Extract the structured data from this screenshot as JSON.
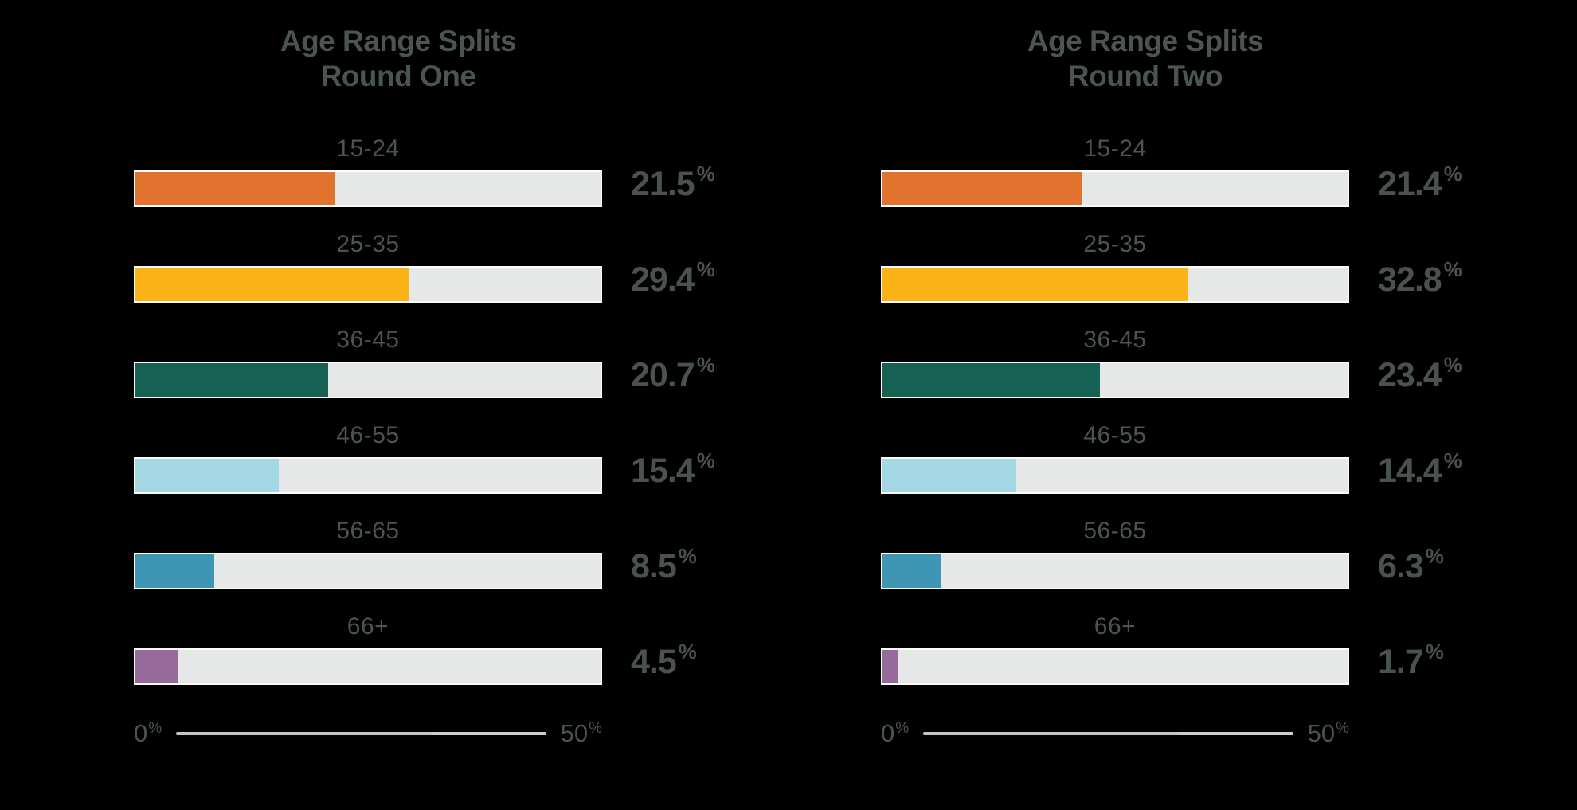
{
  "page": {
    "background": "#000000",
    "text_color": "#4A5351"
  },
  "chart_data": [
    {
      "type": "bar",
      "orientation": "horizontal",
      "title_lines": [
        "Age Range Splits",
        "Round One"
      ],
      "categories": [
        "15-24",
        "25-35",
        "36-45",
        "46-55",
        "56-65",
        "66+"
      ],
      "values": [
        21.5,
        29.4,
        20.7,
        15.4,
        8.5,
        4.5
      ],
      "value_labels": [
        "21.5",
        "29.4",
        "20.7",
        "15.4",
        "8.5",
        "4.5"
      ],
      "value_suffix": "%",
      "xlim": [
        0,
        50
      ],
      "axis_ticks": [
        "0",
        "50"
      ],
      "axis_tick_suffix": "%",
      "bar_colors": [
        "#E2732E",
        "#FBB317",
        "#166153",
        "#A3D8E4",
        "#3E96B4",
        "#966B9B"
      ],
      "track_color": "#E6E8E7",
      "axis_line_color": "#C9CBCA",
      "grid": false,
      "legend": "none"
    },
    {
      "type": "bar",
      "orientation": "horizontal",
      "title_lines": [
        "Age Range Splits",
        "Round Two"
      ],
      "categories": [
        "15-24",
        "25-35",
        "36-45",
        "46-55",
        "56-65",
        "66+"
      ],
      "values": [
        21.4,
        32.8,
        23.4,
        14.4,
        6.3,
        1.7
      ],
      "value_labels": [
        "21.4",
        "32.8",
        "23.4",
        "14.4",
        "6.3",
        "1.7"
      ],
      "value_suffix": "%",
      "xlim": [
        0,
        50
      ],
      "axis_ticks": [
        "0",
        "50"
      ],
      "axis_tick_suffix": "%",
      "bar_colors": [
        "#E2732E",
        "#FBB317",
        "#166153",
        "#A3D8E4",
        "#3E96B4",
        "#966B9B"
      ],
      "track_color": "#E6E8E7",
      "axis_line_color": "#C9CBCA",
      "grid": false,
      "legend": "none"
    }
  ]
}
